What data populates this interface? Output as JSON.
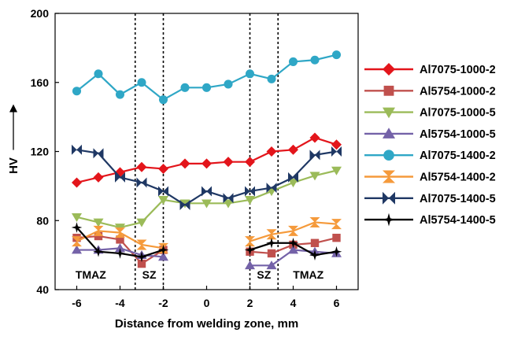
{
  "chart_data": {
    "type": "line",
    "xlabel": "Distance from welding zone, mm",
    "ylabel": "HV",
    "xlim": [
      -7,
      7
    ],
    "ylim": [
      40,
      200
    ],
    "xticks": [
      -6,
      -4,
      -2,
      0,
      2,
      4,
      6
    ],
    "yticks": [
      40,
      80,
      120,
      160,
      200
    ],
    "grid": false,
    "legend_position": "right",
    "zone_boundaries": [
      -3.3,
      -2,
      2,
      3.3
    ],
    "zone_labels": [
      {
        "text": "TMAZ",
        "x": -5.35,
        "y": 45
      },
      {
        "text": "SZ",
        "x": -2.65,
        "y": 45
      },
      {
        "text": "SZ",
        "x": 2.65,
        "y": 45
      },
      {
        "text": "TMAZ",
        "x": 4.7,
        "y": 45
      }
    ],
    "series": [
      {
        "name": "Al7075-1000-2",
        "color": "#e3151b",
        "marker": "diamond",
        "points": [
          [
            -6,
            102
          ],
          [
            -5,
            105
          ],
          [
            -4,
            108
          ],
          [
            -3,
            111
          ],
          [
            -2,
            110
          ],
          [
            -1,
            113
          ],
          [
            0,
            113
          ],
          [
            1,
            114
          ],
          [
            2,
            114
          ],
          [
            3,
            120
          ],
          [
            4,
            121
          ],
          [
            5,
            128
          ],
          [
            6,
            124
          ]
        ]
      },
      {
        "name": "Al5754-1000-2",
        "color": "#c0504d",
        "marker": "square",
        "points": [
          [
            -6,
            70
          ],
          [
            -5,
            71
          ],
          [
            -4,
            69
          ],
          [
            -3,
            55
          ],
          [
            -2,
            63
          ],
          null,
          [
            2,
            62
          ],
          [
            3,
            61
          ],
          [
            4,
            66
          ],
          [
            5,
            67
          ],
          [
            6,
            70
          ]
        ]
      },
      {
        "name": "Al7075-1000-5",
        "color": "#9bbb59",
        "marker": "triangle-down",
        "points": [
          [
            -6,
            82
          ],
          [
            -5,
            79
          ],
          [
            -4,
            76
          ],
          [
            -3,
            79
          ],
          [
            -2,
            92
          ],
          [
            -1,
            90
          ],
          [
            0,
            90
          ],
          [
            1,
            90
          ],
          [
            2,
            92
          ],
          [
            3,
            97
          ],
          [
            4,
            102
          ],
          [
            5,
            106
          ],
          [
            6,
            109
          ]
        ]
      },
      {
        "name": "Al5754-1000-5",
        "color": "#7462a8",
        "marker": "triangle-up",
        "points": [
          [
            -6,
            63
          ],
          [
            -5,
            63
          ],
          [
            -4,
            64
          ],
          [
            -3,
            60
          ],
          [
            -2,
            59
          ],
          null,
          [
            2,
            54
          ],
          [
            3,
            54
          ],
          [
            4,
            63
          ],
          [
            5,
            62
          ],
          [
            6,
            61
          ]
        ]
      },
      {
        "name": "Al7075-1400-2",
        "color": "#2fa7c6",
        "marker": "circle",
        "points": [
          [
            -6,
            155
          ],
          [
            -5,
            165
          ],
          [
            -4,
            153
          ],
          [
            -3,
            160
          ],
          [
            -2,
            150
          ],
          [
            -1,
            157
          ],
          [
            0,
            157
          ],
          [
            1,
            159
          ],
          [
            2,
            165
          ],
          [
            3,
            162
          ],
          [
            4,
            172
          ],
          [
            5,
            173
          ],
          [
            6,
            176
          ]
        ]
      },
      {
        "name": "Al5754-1400-2",
        "color": "#f59a3b",
        "marker": "hourglass",
        "points": [
          [
            -6,
            68
          ],
          [
            -5,
            74
          ],
          [
            -4,
            73
          ],
          [
            -3,
            66
          ],
          [
            -2,
            64
          ],
          null,
          [
            2,
            68
          ],
          [
            3,
            72
          ],
          [
            4,
            74
          ],
          [
            5,
            79
          ],
          [
            6,
            78
          ]
        ]
      },
      {
        "name": "Al7075-1400-5",
        "color": "#1f3864",
        "marker": "bowtie",
        "points": [
          [
            -6,
            121
          ],
          [
            -5,
            119
          ],
          [
            -4,
            105
          ],
          [
            -3,
            102
          ],
          [
            -2,
            97
          ],
          [
            -1,
            89
          ],
          [
            0,
            97
          ],
          [
            1,
            93
          ],
          [
            2,
            97
          ],
          [
            3,
            99
          ],
          [
            4,
            105
          ],
          [
            5,
            118
          ],
          [
            6,
            120
          ]
        ]
      },
      {
        "name": "Al5754-1400-5",
        "color": "#000000",
        "marker": "star",
        "points": [
          [
            -6,
            76
          ],
          [
            -5,
            62
          ],
          [
            -4,
            61
          ],
          [
            -3,
            59
          ],
          [
            -2,
            63
          ],
          null,
          [
            2,
            63
          ],
          [
            3,
            67
          ],
          [
            4,
            67
          ],
          [
            5,
            60
          ],
          [
            6,
            62
          ]
        ]
      }
    ]
  }
}
